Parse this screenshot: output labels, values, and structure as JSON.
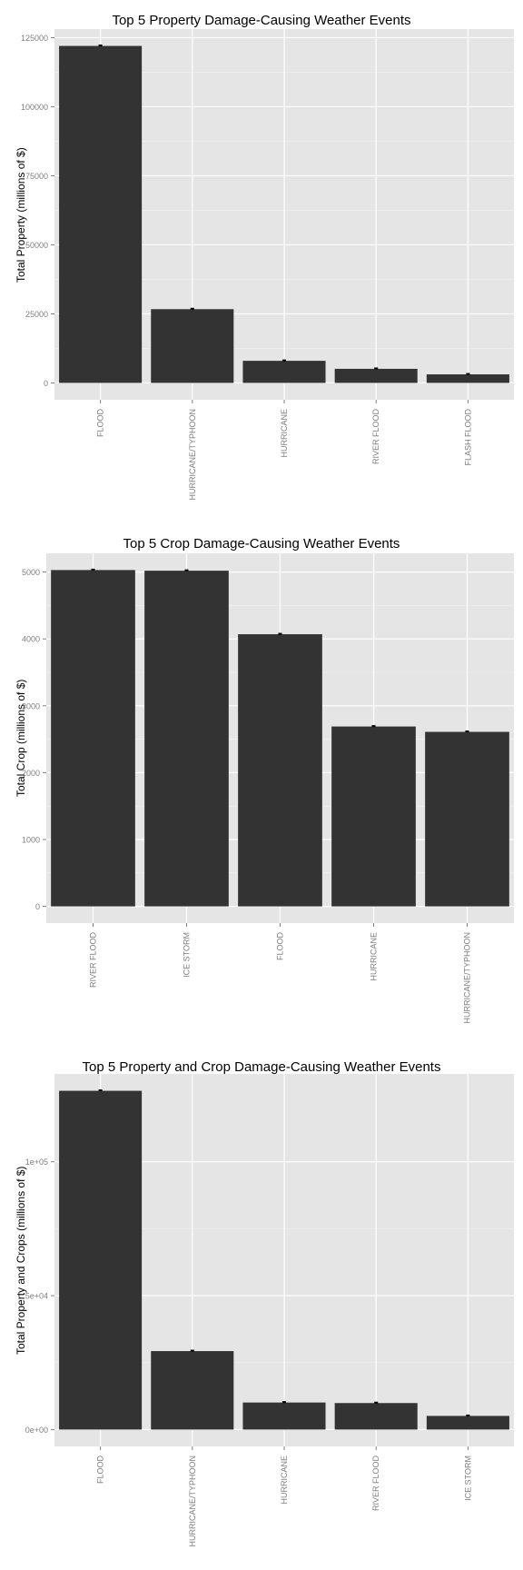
{
  "chart_data": [
    {
      "type": "bar",
      "title": "Top 5 Property Damage-Causing Weather Events",
      "xlabel": "",
      "ylabel": "Total Property (millions of $)",
      "categories": [
        "FLOOD",
        "HURRICANE/TYPHOON",
        "HURRICANE",
        "RIVER FLOOD",
        "FLASH FLOOD"
      ],
      "values": [
        122000,
        26700,
        8000,
        5100,
        3100
      ],
      "yticks": [
        0,
        25000,
        50000,
        75000,
        100000,
        125000
      ],
      "ytick_labels": [
        "0",
        "25000",
        "50000",
        "75000",
        "100000",
        "125000"
      ],
      "ylim": [
        -6100,
        128100
      ],
      "grid": true
    },
    {
      "type": "bar",
      "title": "Top 5 Crop Damage-Causing Weather Events",
      "xlabel": "",
      "ylabel": "Total Crop (millions of $)",
      "categories": [
        "RIVER FLOOD",
        "ICE STORM",
        "FLOOD",
        "HURRICANE",
        "HURRICANE/TYPHOON"
      ],
      "values": [
        5030,
        5020,
        4070,
        2690,
        2610
      ],
      "yticks": [
        0,
        1000,
        2000,
        3000,
        4000,
        5000
      ],
      "ytick_labels": [
        "0",
        "1000",
        "2000",
        "3000",
        "4000",
        "5000"
      ],
      "ylim": [
        -250,
        5280
      ],
      "grid": true
    },
    {
      "type": "bar",
      "title": "Top 5 Property and Crop Damage-Causing Weather Events",
      "xlabel": "",
      "ylabel": "Total Property and Crops (millions of $)",
      "categories": [
        "FLOOD",
        "HURRICANE/TYPHOON",
        "HURRICANE",
        "RIVER FLOOD",
        "ICE STORM"
      ],
      "values": [
        126500,
        29300,
        10100,
        9900,
        5100
      ],
      "yticks": [
        0,
        50000,
        100000
      ],
      "ytick_labels": [
        "0e+00",
        "5e+04",
        "1e+05"
      ],
      "ylim": [
        -6300,
        132800
      ],
      "grid": true
    }
  ]
}
